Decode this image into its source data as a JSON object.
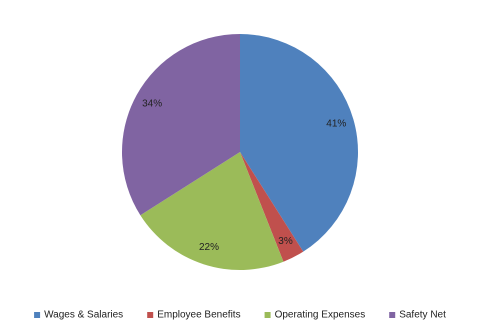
{
  "chart_data": {
    "type": "pie",
    "categories": [
      "Wages & Salaries",
      "Employee Benefits",
      "Operating Expenses",
      "Safety Net"
    ],
    "values": [
      41,
      3,
      22,
      34
    ],
    "value_labels": [
      "41%",
      "3%",
      "22%",
      "34%"
    ],
    "colors": [
      "#4f81bd",
      "#c0504d",
      "#9bbb59",
      "#8064a2"
    ],
    "legend": "bottom"
  }
}
